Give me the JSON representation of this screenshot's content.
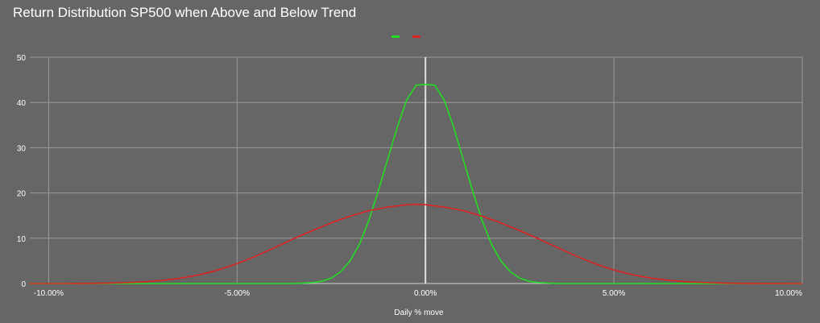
{
  "chart_data": {
    "type": "line",
    "title": "Return Distribution SP500 when Above and Below Trend",
    "xlabel": "Daily % move",
    "ylabel": "",
    "xlim": [
      -10.5,
      10.0
    ],
    "ylim": [
      0,
      50
    ],
    "grid": true,
    "legend": "top-center",
    "x_ticks": [
      {
        "value": -10,
        "label": "-10.00%"
      },
      {
        "value": -5,
        "label": "-5.00%"
      },
      {
        "value": 0,
        "label": "0.00%"
      },
      {
        "value": 5,
        "label": "5.00%"
      },
      {
        "value": 10,
        "label": "10.00%"
      }
    ],
    "y_ticks": [
      {
        "value": 0,
        "label": "0"
      },
      {
        "value": 10,
        "label": "10"
      },
      {
        "value": 20,
        "label": "20"
      },
      {
        "value": 30,
        "label": "30"
      },
      {
        "value": 40,
        "label": "40"
      },
      {
        "value": 50,
        "label": "50"
      }
    ],
    "series": [
      {
        "color": "#22dd22",
        "x": [
          -10.5,
          -4,
          -3.5,
          -3,
          -2.75,
          -2.5,
          -2.25,
          -2,
          -1.75,
          -1.5,
          -1.25,
          -1,
          -0.75,
          -0.5,
          -0.25,
          0,
          0.25,
          0.5,
          0.75,
          1,
          1.25,
          1.5,
          1.75,
          2,
          2.25,
          2.5,
          2.75,
          3,
          3.5,
          4,
          10
        ],
        "values": [
          0,
          0,
          0,
          0.2,
          0.5,
          1.2,
          2.6,
          5,
          8.7,
          14,
          20.5,
          27.5,
          34.5,
          40.5,
          43.8,
          44,
          43.8,
          40.5,
          34.5,
          27.5,
          20.5,
          14,
          8.7,
          5,
          2.6,
          1.2,
          0.5,
          0.2,
          0,
          0,
          0
        ]
      },
      {
        "color": "#dd2222",
        "x": [
          -10.5,
          -9.5,
          -9,
          -8.5,
          -8,
          -7.5,
          -7,
          -6.5,
          -6,
          -5.5,
          -5,
          -4.5,
          -4,
          -3.5,
          -3,
          -2.5,
          -2,
          -1.5,
          -1,
          -0.5,
          -0.2,
          0,
          0.5,
          1,
          1.5,
          2,
          2.5,
          3,
          3.5,
          4,
          4.5,
          5,
          5.5,
          6,
          6.5,
          7,
          7.5,
          8,
          8.5,
          9,
          10
        ],
        "values": [
          0,
          0,
          0.03,
          0.08,
          0.18,
          0.36,
          0.67,
          1.17,
          1.93,
          2.99,
          4.38,
          6.06,
          7.95,
          9.89,
          11.7,
          13.4,
          14.9,
          16.1,
          16.9,
          17.4,
          17.5,
          17.4,
          16.9,
          16.1,
          14.9,
          13.4,
          11.7,
          9.89,
          7.95,
          6.06,
          4.38,
          2.99,
          1.93,
          1.17,
          0.67,
          0.36,
          0.18,
          0.08,
          0.03,
          0.01,
          0
        ]
      }
    ]
  }
}
